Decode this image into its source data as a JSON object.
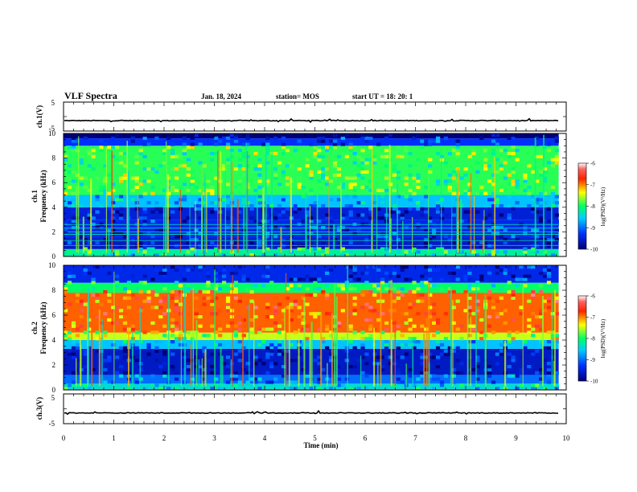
{
  "header": {
    "title": "VLF Spectra",
    "date": "Jan. 18, 2024",
    "station": "station= MOS",
    "start": "start  UT  =   18: 20: 1"
  },
  "chart_data": [
    {
      "type": "line",
      "ylabel": "ch.1(V)",
      "ylim": [
        -5,
        5
      ],
      "ticks": [
        "5",
        "-5"
      ],
      "series": [
        {
          "level": -1.4,
          "note_free": true
        }
      ]
    },
    {
      "type": "heatmap",
      "ylabel_line1": "ch.1",
      "ylabel_line2": "Frequency (kHz)",
      "xlim": [
        0,
        10
      ],
      "ylim": [
        0,
        10
      ],
      "yticks": [
        "0",
        "2",
        "4",
        "6",
        "8",
        "10"
      ],
      "colorbar": {
        "label": "log(PSD)(V²/Hz)",
        "ticks": [
          "-6",
          "-7",
          "-8",
          "-9",
          "-10"
        ],
        "range": [
          -10,
          -6
        ]
      },
      "bands": [
        {
          "from": 0.0,
          "to": 0.6,
          "level": -8.2
        },
        {
          "from": 0.6,
          "to": 1.5,
          "level": -9.6
        },
        {
          "from": 1.5,
          "to": 3.0,
          "level": -9.4
        },
        {
          "from": 3.0,
          "to": 4.0,
          "level": -9.5
        },
        {
          "from": 4.0,
          "to": 5.0,
          "level": -8.6
        },
        {
          "from": 5.0,
          "to": 9.0,
          "level": -7.9
        },
        {
          "from": 9.0,
          "to": 9.6,
          "level": -9.3
        },
        {
          "from": 9.6,
          "to": 10.0,
          "level": -10
        }
      ],
      "lines_khz": [
        0.9,
        1.3,
        1.8,
        2.0,
        2.3,
        2.6
      ]
    },
    {
      "type": "heatmap",
      "ylabel_line1": "ch.2",
      "ylabel_line2": "Frequency (kHz)",
      "xlim": [
        0,
        10
      ],
      "ylim": [
        0,
        10
      ],
      "yticks": [
        "0",
        "2",
        "4",
        "6",
        "8",
        "10"
      ],
      "colorbar": {
        "label": "log(PSD)(V²/Hz)",
        "ticks": [
          "-6",
          "-7",
          "-8",
          "-9",
          "-10"
        ],
        "range": [
          -10,
          -6
        ]
      },
      "bands": [
        {
          "from": 0.0,
          "to": 0.5,
          "level": -8.4
        },
        {
          "from": 0.5,
          "to": 1.2,
          "level": -9.0
        },
        {
          "from": 1.2,
          "to": 3.3,
          "level": -9.6
        },
        {
          "from": 3.3,
          "to": 4.0,
          "level": -8.6
        },
        {
          "from": 4.0,
          "to": 4.6,
          "level": -7.5
        },
        {
          "from": 4.6,
          "to": 7.8,
          "level": -6.9
        },
        {
          "from": 7.8,
          "to": 8.6,
          "level": -8.0
        },
        {
          "from": 8.6,
          "to": 10.0,
          "level": -9.4
        }
      ]
    },
    {
      "type": "line",
      "ylabel": "ch.3(V)",
      "ylim": [
        -5,
        5
      ],
      "ticks": [
        "5",
        "-5"
      ],
      "series": [
        {
          "level": -1.4
        }
      ]
    }
  ],
  "xaxis": {
    "label": "Time  (min)",
    "ticks": [
      "0",
      "1",
      "2",
      "3",
      "4",
      "5",
      "6",
      "7",
      "8",
      "9",
      "10"
    ],
    "xlim": [
      0,
      10
    ],
    "data_end": 9.85
  }
}
